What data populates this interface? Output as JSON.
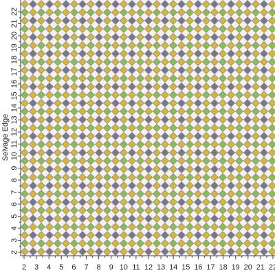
{
  "left_ruler": {
    "labels": [
      "22",
      "21",
      "20",
      "19",
      "18",
      "17",
      "16",
      "15",
      "14",
      "13",
      "12",
      "11",
      "10",
      "9",
      "8",
      "7",
      "6",
      "5",
      "4",
      "3",
      "2"
    ]
  },
  "bottom_ruler": {
    "labels": [
      "2",
      "3",
      "4",
      "5",
      "6",
      "7",
      "8",
      "9",
      "10",
      "11",
      "12",
      "13",
      "14",
      "15",
      "16",
      "17",
      "18",
      "19",
      "20",
      "21",
      "22"
    ]
  },
  "selvage_label": "Selvage Edge"
}
